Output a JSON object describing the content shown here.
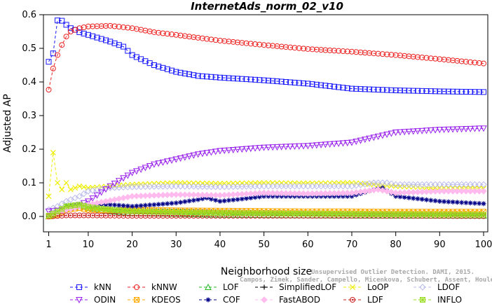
{
  "chart_data": {
    "type": "line",
    "title": "InternetAds_norm_02_v10",
    "xlabel": "Neighborhood size",
    "ylabel": "Adjusted AP",
    "xlim": [
      1,
      100
    ],
    "ylim": [
      0.0,
      0.6
    ],
    "x_ticks": [
      "1",
      "10",
      "20",
      "30",
      "40",
      "50",
      "60",
      "70",
      "80",
      "90",
      "100"
    ],
    "y_ticks": [
      "0.0",
      "0.1",
      "0.2",
      "0.3",
      "0.4",
      "0.5",
      "0.6"
    ],
    "credit_line1": "Unsupervised Outlier Detection. DAMI, 2015.",
    "credit_line2": "Campos, Zimek, Sander, Campello, Micenkova, Schubert, Assent, Houle",
    "legend_placement": "bottom",
    "x_step": 1,
    "series": [
      {
        "name": "kNN",
        "color": "#1a1aff",
        "marker": "square",
        "keypoints": [
          [
            1,
            0.46
          ],
          [
            2,
            0.485
          ],
          [
            3,
            0.583
          ],
          [
            4,
            0.582
          ],
          [
            5,
            0.57
          ],
          [
            6,
            0.56
          ],
          [
            7,
            0.555
          ],
          [
            8,
            0.548
          ],
          [
            10,
            0.54
          ],
          [
            15,
            0.52
          ],
          [
            18,
            0.505
          ],
          [
            20,
            0.48
          ],
          [
            25,
            0.45
          ],
          [
            30,
            0.43
          ],
          [
            35,
            0.418
          ],
          [
            40,
            0.413
          ],
          [
            50,
            0.405
          ],
          [
            60,
            0.395
          ],
          [
            70,
            0.38
          ],
          [
            80,
            0.375
          ],
          [
            90,
            0.372
          ],
          [
            100,
            0.37
          ]
        ]
      },
      {
        "name": "kNNW",
        "color": "#ee2222",
        "marker": "circle",
        "keypoints": [
          [
            1,
            0.377
          ],
          [
            2,
            0.44
          ],
          [
            3,
            0.48
          ],
          [
            4,
            0.51
          ],
          [
            5,
            0.535
          ],
          [
            6,
            0.55
          ],
          [
            8,
            0.56
          ],
          [
            10,
            0.565
          ],
          [
            15,
            0.567
          ],
          [
            20,
            0.56
          ],
          [
            25,
            0.548
          ],
          [
            30,
            0.54
          ],
          [
            40,
            0.523
          ],
          [
            50,
            0.51
          ],
          [
            60,
            0.498
          ],
          [
            70,
            0.49
          ],
          [
            80,
            0.48
          ],
          [
            90,
            0.468
          ],
          [
            100,
            0.455
          ]
        ]
      },
      {
        "name": "LOF",
        "color": "#22bb22",
        "marker": "triangle-up",
        "keypoints": [
          [
            1,
            0.0
          ],
          [
            3,
            0.01
          ],
          [
            5,
            0.03
          ],
          [
            8,
            0.033
          ],
          [
            10,
            0.025
          ],
          [
            15,
            0.015
          ],
          [
            20,
            0.01
          ],
          [
            40,
            0.005
          ],
          [
            60,
            0.003
          ],
          [
            80,
            0.002
          ],
          [
            100,
            0.002
          ]
        ]
      },
      {
        "name": "SimplifiedLOF",
        "color": "#000000",
        "marker": "plus",
        "keypoints": [
          [
            1,
            0.0
          ],
          [
            3,
            0.015
          ],
          [
            5,
            0.03
          ],
          [
            8,
            0.035
          ],
          [
            10,
            0.03
          ],
          [
            15,
            0.022
          ],
          [
            20,
            0.018
          ],
          [
            40,
            0.013
          ],
          [
            60,
            0.01
          ],
          [
            80,
            0.008
          ],
          [
            100,
            0.007
          ]
        ]
      },
      {
        "name": "LoOP",
        "color": "#eeee00",
        "marker": "x",
        "keypoints": [
          [
            1,
            0.06
          ],
          [
            2,
            0.19
          ],
          [
            3,
            0.1
          ],
          [
            4,
            0.08
          ],
          [
            5,
            0.1
          ],
          [
            6,
            0.08
          ],
          [
            8,
            0.09
          ],
          [
            10,
            0.085
          ],
          [
            20,
            0.095
          ],
          [
            30,
            0.1
          ],
          [
            40,
            0.098
          ],
          [
            50,
            0.1
          ],
          [
            60,
            0.099
          ],
          [
            70,
            0.1
          ],
          [
            80,
            0.09
          ],
          [
            90,
            0.085
          ],
          [
            100,
            0.083
          ]
        ]
      },
      {
        "name": "LDOF",
        "color": "#bbbbee",
        "marker": "diamond",
        "keypoints": [
          [
            1,
            0.02
          ],
          [
            3,
            0.03
          ],
          [
            5,
            0.045
          ],
          [
            8,
            0.06
          ],
          [
            10,
            0.075
          ],
          [
            15,
            0.085
          ],
          [
            20,
            0.088
          ],
          [
            30,
            0.09
          ],
          [
            40,
            0.088
          ],
          [
            50,
            0.09
          ],
          [
            60,
            0.09
          ],
          [
            70,
            0.09
          ],
          [
            75,
            0.1
          ],
          [
            78,
            0.1
          ],
          [
            80,
            0.095
          ],
          [
            90,
            0.095
          ],
          [
            100,
            0.095
          ]
        ]
      },
      {
        "name": "ODIN",
        "color": "#9922ee",
        "marker": "triangle-down",
        "keypoints": [
          [
            1,
            0.015
          ],
          [
            5,
            0.02
          ],
          [
            8,
            0.035
          ],
          [
            10,
            0.045
          ],
          [
            15,
            0.09
          ],
          [
            20,
            0.13
          ],
          [
            25,
            0.155
          ],
          [
            30,
            0.17
          ],
          [
            35,
            0.185
          ],
          [
            40,
            0.195
          ],
          [
            50,
            0.205
          ],
          [
            60,
            0.21
          ],
          [
            70,
            0.22
          ],
          [
            80,
            0.25
          ],
          [
            90,
            0.258
          ],
          [
            100,
            0.262
          ]
        ]
      },
      {
        "name": "KDEOS",
        "color": "#ffaa00",
        "marker": "x-square",
        "keypoints": [
          [
            1,
            0.0
          ],
          [
            3,
            0.005
          ],
          [
            5,
            0.02
          ],
          [
            8,
            0.025
          ],
          [
            10,
            0.02
          ],
          [
            15,
            0.018
          ],
          [
            20,
            0.02
          ],
          [
            30,
            0.018
          ],
          [
            40,
            0.017
          ],
          [
            50,
            0.016
          ],
          [
            60,
            0.015
          ],
          [
            70,
            0.015
          ],
          [
            80,
            0.014
          ],
          [
            90,
            0.014
          ],
          [
            100,
            0.014
          ]
        ]
      },
      {
        "name": "COF",
        "color": "#000088",
        "marker": "asterisk",
        "keypoints": [
          [
            1,
            0.005
          ],
          [
            5,
            0.02
          ],
          [
            10,
            0.035
          ],
          [
            15,
            0.035
          ],
          [
            20,
            0.03
          ],
          [
            30,
            0.04
          ],
          [
            35,
            0.05
          ],
          [
            37,
            0.055
          ],
          [
            40,
            0.045
          ],
          [
            45,
            0.052
          ],
          [
            50,
            0.06
          ],
          [
            60,
            0.06
          ],
          [
            70,
            0.06
          ],
          [
            75,
            0.08
          ],
          [
            77,
            0.085
          ],
          [
            80,
            0.06
          ],
          [
            90,
            0.045
          ],
          [
            100,
            0.038
          ]
        ]
      },
      {
        "name": "FastABOD",
        "color": "#ffbbee",
        "marker": "diamond-filled",
        "keypoints": [
          [
            1,
            0.005
          ],
          [
            5,
            0.02
          ],
          [
            10,
            0.035
          ],
          [
            20,
            0.06
          ],
          [
            30,
            0.065
          ],
          [
            40,
            0.063
          ],
          [
            50,
            0.07
          ],
          [
            60,
            0.068
          ],
          [
            70,
            0.07
          ],
          [
            76,
            0.08
          ],
          [
            80,
            0.07
          ],
          [
            90,
            0.075
          ],
          [
            100,
            0.075
          ]
        ]
      },
      {
        "name": "LDF",
        "color": "#cc2222",
        "marker": "circle-dot",
        "keypoints": [
          [
            1,
            0.0
          ],
          [
            5,
            0.003
          ],
          [
            10,
            0.003
          ],
          [
            20,
            0.002
          ],
          [
            40,
            0.002
          ],
          [
            60,
            0.002
          ],
          [
            80,
            0.002
          ],
          [
            100,
            0.001
          ]
        ]
      },
      {
        "name": "INFLO",
        "color": "#99dd22",
        "marker": "hash-square",
        "keypoints": [
          [
            1,
            0.002
          ],
          [
            3,
            0.015
          ],
          [
            5,
            0.03
          ],
          [
            8,
            0.035
          ],
          [
            10,
            0.028
          ],
          [
            15,
            0.02
          ],
          [
            20,
            0.015
          ],
          [
            40,
            0.01
          ],
          [
            60,
            0.008
          ],
          [
            80,
            0.006
          ],
          [
            100,
            0.005
          ]
        ]
      }
    ]
  }
}
